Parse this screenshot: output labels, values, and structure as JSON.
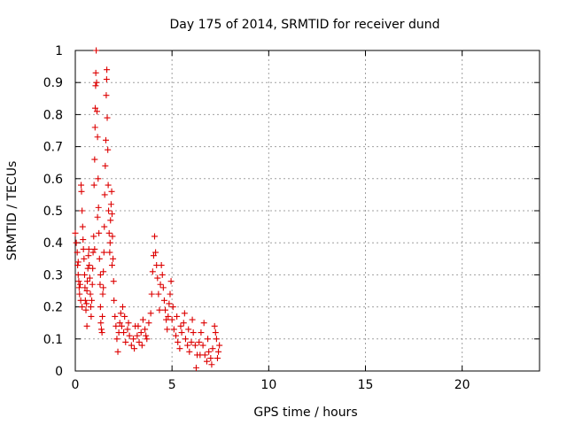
{
  "chart_data": {
    "type": "scatter",
    "title": "Day 175 of 2014, SRMTID for receiver dund",
    "xlabel": "GPS time / hours",
    "ylabel": "SRMTID / TECUs",
    "xlim": [
      0,
      24
    ],
    "ylim": [
      0,
      1
    ],
    "x_ticks": [
      0,
      5,
      10,
      15,
      20
    ],
    "x_tick_labels": [
      "0",
      "5",
      "10",
      "15",
      "20"
    ],
    "y_ticks": [
      0,
      0.1,
      0.2,
      0.3,
      0.4,
      0.5,
      0.6,
      0.7,
      0.8,
      0.9,
      1
    ],
    "y_tick_labels": [
      "0",
      "0.1",
      "0.2",
      "0.3",
      "0.4",
      "0.5",
      "0.6",
      "0.7",
      "0.8",
      "0.9",
      "1"
    ],
    "grid": true,
    "marker": "+",
    "color": "#dd0000",
    "series": [
      {
        "name": "SRMTID",
        "points": [
          [
            0.0,
            0.43
          ],
          [
            0.05,
            0.4
          ],
          [
            0.1,
            0.37
          ],
          [
            0.12,
            0.33
          ],
          [
            0.15,
            0.3
          ],
          [
            0.18,
            0.28
          ],
          [
            0.2,
            0.26
          ],
          [
            0.22,
            0.24
          ],
          [
            0.25,
            0.27
          ],
          [
            0.28,
            0.22
          ],
          [
            0.3,
            0.58
          ],
          [
            0.32,
            0.56
          ],
          [
            0.35,
            0.5
          ],
          [
            0.38,
            0.45
          ],
          [
            0.4,
            0.41
          ],
          [
            0.42,
            0.38
          ],
          [
            0.45,
            0.35
          ],
          [
            0.48,
            0.3
          ],
          [
            0.5,
            0.26
          ],
          [
            0.52,
            0.22
          ],
          [
            0.55,
            0.19
          ],
          [
            0.58,
            0.21
          ],
          [
            0.6,
            0.25
          ],
          [
            0.62,
            0.28
          ],
          [
            0.65,
            0.32
          ],
          [
            0.68,
            0.36
          ],
          [
            0.7,
            0.38
          ],
          [
            0.72,
            0.33
          ],
          [
            0.75,
            0.29
          ],
          [
            0.78,
            0.24
          ],
          [
            0.8,
            0.2
          ],
          [
            0.82,
            0.17
          ],
          [
            0.85,
            0.22
          ],
          [
            0.88,
            0.27
          ],
          [
            0.9,
            0.32
          ],
          [
            0.92,
            0.37
          ],
          [
            0.95,
            0.42
          ],
          [
            0.97,
            0.58
          ],
          [
            1.0,
            0.66
          ],
          [
            1.02,
            0.76
          ],
          [
            1.03,
            0.82
          ],
          [
            1.05,
            0.89
          ],
          [
            1.06,
            0.93
          ],
          [
            1.08,
            1.0
          ],
          [
            1.1,
            0.9
          ],
          [
            1.12,
            0.81
          ],
          [
            1.15,
            0.73
          ],
          [
            1.18,
            0.6
          ],
          [
            1.2,
            0.51
          ],
          [
            1.22,
            0.43
          ],
          [
            1.25,
            0.35
          ],
          [
            1.28,
            0.27
          ],
          [
            1.3,
            0.2
          ],
          [
            1.32,
            0.15
          ],
          [
            1.35,
            0.13
          ],
          [
            1.38,
            0.12
          ],
          [
            1.4,
            0.17
          ],
          [
            1.42,
            0.24
          ],
          [
            1.45,
            0.31
          ],
          [
            1.48,
            0.37
          ],
          [
            1.5,
            0.45
          ],
          [
            1.52,
            0.55
          ],
          [
            1.55,
            0.64
          ],
          [
            1.58,
            0.72
          ],
          [
            1.6,
            0.86
          ],
          [
            1.62,
            0.91
          ],
          [
            1.63,
            0.94
          ],
          [
            1.65,
            0.79
          ],
          [
            1.68,
            0.69
          ],
          [
            1.7,
            0.58
          ],
          [
            1.72,
            0.5
          ],
          [
            1.75,
            0.43
          ],
          [
            1.78,
            0.37
          ],
          [
            1.8,
            0.4
          ],
          [
            1.82,
            0.47
          ],
          [
            1.85,
            0.52
          ],
          [
            1.88,
            0.56
          ],
          [
            1.9,
            0.49
          ],
          [
            1.92,
            0.42
          ],
          [
            1.95,
            0.35
          ],
          [
            1.98,
            0.28
          ],
          [
            2.0,
            0.22
          ],
          [
            2.05,
            0.17
          ],
          [
            2.1,
            0.14
          ],
          [
            2.15,
            0.1
          ],
          [
            2.2,
            0.06
          ],
          [
            2.25,
            0.12
          ],
          [
            2.3,
            0.15
          ],
          [
            2.35,
            0.18
          ],
          [
            2.4,
            0.14
          ],
          [
            2.5,
            0.12
          ],
          [
            2.6,
            0.09
          ],
          [
            2.7,
            0.13
          ],
          [
            2.8,
            0.11
          ],
          [
            2.9,
            0.08
          ],
          [
            3.0,
            0.1
          ],
          [
            3.1,
            0.14
          ],
          [
            3.2,
            0.11
          ],
          [
            3.3,
            0.09
          ],
          [
            3.4,
            0.12
          ],
          [
            3.5,
            0.16
          ],
          [
            3.6,
            0.13
          ],
          [
            3.7,
            0.1
          ],
          [
            3.8,
            0.15
          ],
          [
            3.9,
            0.18
          ],
          [
            3.95,
            0.24
          ],
          [
            4.0,
            0.31
          ],
          [
            4.05,
            0.36
          ],
          [
            4.1,
            0.42
          ],
          [
            4.15,
            0.37
          ],
          [
            4.2,
            0.33
          ],
          [
            4.25,
            0.29
          ],
          [
            4.3,
            0.24
          ],
          [
            4.35,
            0.19
          ],
          [
            4.4,
            0.27
          ],
          [
            4.45,
            0.33
          ],
          [
            4.5,
            0.3
          ],
          [
            4.55,
            0.26
          ],
          [
            4.6,
            0.22
          ],
          [
            4.65,
            0.19
          ],
          [
            4.7,
            0.16
          ],
          [
            4.75,
            0.13
          ],
          [
            4.8,
            0.17
          ],
          [
            4.85,
            0.21
          ],
          [
            4.9,
            0.24
          ],
          [
            4.95,
            0.28
          ],
          [
            5.0,
            0.16
          ],
          [
            5.1,
            0.13
          ],
          [
            5.2,
            0.11
          ],
          [
            5.3,
            0.09
          ],
          [
            5.4,
            0.07
          ],
          [
            5.5,
            0.12
          ],
          [
            5.6,
            0.15
          ],
          [
            5.7,
            0.1
          ],
          [
            5.8,
            0.08
          ],
          [
            5.9,
            0.06
          ],
          [
            6.0,
            0.09
          ],
          [
            6.1,
            0.12
          ],
          [
            6.2,
            0.08
          ],
          [
            6.25,
            0.01
          ],
          [
            6.3,
            0.05
          ],
          [
            6.4,
            0.09
          ],
          [
            6.5,
            0.12
          ],
          [
            6.6,
            0.08
          ],
          [
            6.7,
            0.05
          ],
          [
            6.8,
            0.03
          ],
          [
            6.9,
            0.06
          ],
          [
            7.0,
            0.04
          ],
          [
            7.1,
            0.07
          ],
          [
            7.2,
            0.14
          ],
          [
            7.3,
            0.1
          ],
          [
            7.4,
            0.06
          ],
          [
            7.45,
            0.08
          ],
          [
            2.45,
            0.2
          ],
          [
            2.55,
            0.17
          ],
          [
            2.75,
            0.15
          ],
          [
            3.05,
            0.07
          ],
          [
            3.25,
            0.14
          ],
          [
            3.45,
            0.08
          ],
          [
            3.65,
            0.11
          ],
          [
            5.05,
            0.2
          ],
          [
            5.25,
            0.17
          ],
          [
            5.45,
            0.14
          ],
          [
            5.65,
            0.18
          ],
          [
            5.85,
            0.13
          ],
          [
            6.05,
            0.16
          ],
          [
            6.45,
            0.05
          ],
          [
            6.65,
            0.15
          ],
          [
            6.85,
            0.1
          ],
          [
            7.05,
            0.02
          ],
          [
            7.25,
            0.12
          ],
          [
            7.35,
            0.04
          ],
          [
            0.15,
            0.34
          ],
          [
            0.35,
            0.2
          ],
          [
            0.6,
            0.14
          ],
          [
            1.0,
            0.38
          ],
          [
            1.15,
            0.48
          ],
          [
            1.3,
            0.3
          ],
          [
            1.45,
            0.26
          ],
          [
            1.9,
            0.33
          ]
        ]
      }
    ]
  }
}
